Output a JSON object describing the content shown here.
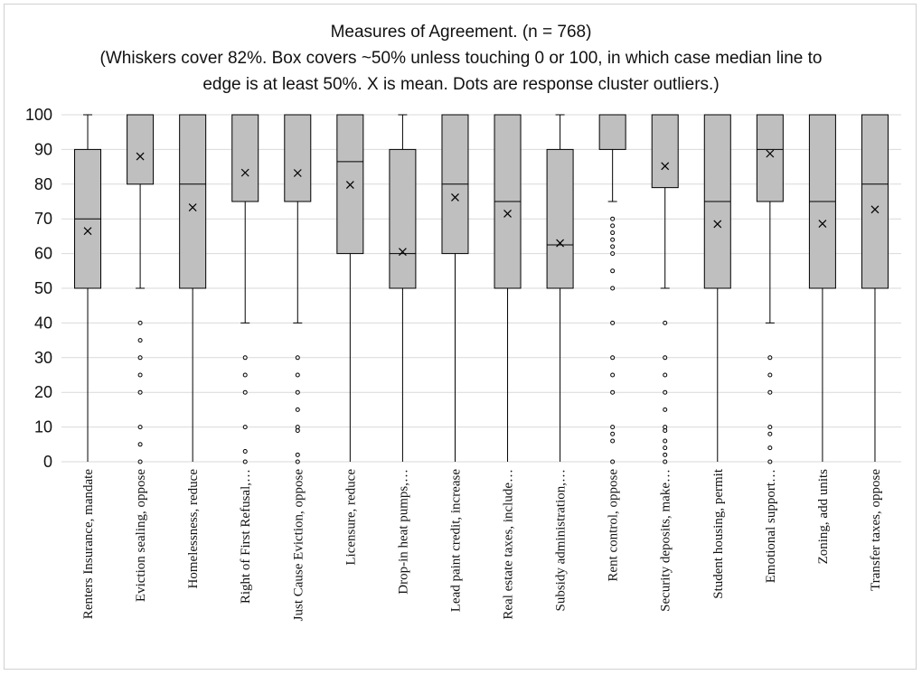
{
  "chart_data": {
    "type": "box",
    "title": "Measures of Agreement. (n = 768)",
    "subtitle_lines": [
      "(Whiskers cover 82%. Box covers ~50% unless touching 0 or 100, in which case median line to",
      "edge is at least 50%. X is mean. Dots are response cluster outliers.)"
    ],
    "ylim": [
      0,
      100
    ],
    "yticks": [
      0,
      10,
      20,
      30,
      40,
      50,
      60,
      70,
      80,
      90,
      100
    ],
    "grid": true,
    "series": [
      {
        "category": "Renters Insurance, mandate",
        "whisker_low": 0,
        "q1": 50,
        "median": 70,
        "q3": 90,
        "whisker_high": 100,
        "mean": 66.5,
        "outliers": []
      },
      {
        "category": "Eviction sealing, oppose",
        "whisker_low": 50,
        "q1": 80,
        "median": 100,
        "q3": 100,
        "whisker_high": 100,
        "mean": 88,
        "outliers": [
          0,
          5,
          10,
          20,
          25,
          30,
          35,
          40
        ]
      },
      {
        "category": "Homelessness, reduce",
        "whisker_low": 0,
        "q1": 50,
        "median": 80,
        "q3": 100,
        "whisker_high": 100,
        "mean": 73.3,
        "outliers": []
      },
      {
        "category": "Right of First Refusal,…",
        "whisker_low": 40,
        "q1": 75,
        "median": 100,
        "q3": 100,
        "whisker_high": 100,
        "mean": 83.3,
        "outliers": [
          0,
          3,
          10,
          20,
          25,
          30
        ]
      },
      {
        "category": "Just Cause Eviction, oppose",
        "whisker_low": 40,
        "q1": 75,
        "median": 100,
        "q3": 100,
        "whisker_high": 100,
        "mean": 83.2,
        "outliers": [
          0,
          2,
          9,
          10,
          15,
          20,
          25,
          30
        ]
      },
      {
        "category": "Licensure, reduce",
        "whisker_low": 0,
        "q1": 60,
        "median": 86.5,
        "q3": 100,
        "whisker_high": 100,
        "mean": 79.8,
        "outliers": []
      },
      {
        "category": "Drop-in heat pumps,…",
        "whisker_low": 0,
        "q1": 50,
        "median": 60,
        "q3": 90,
        "whisker_high": 100,
        "mean": 60.5,
        "outliers": []
      },
      {
        "category": "Lead paint credit, increase",
        "whisker_low": 0,
        "q1": 60,
        "median": 80,
        "q3": 100,
        "whisker_high": 100,
        "mean": 76.2,
        "outliers": []
      },
      {
        "category": "Real estate taxes, include…",
        "whisker_low": 0,
        "q1": 50,
        "median": 75,
        "q3": 100,
        "whisker_high": 100,
        "mean": 71.5,
        "outliers": []
      },
      {
        "category": "Subsidy administration,…",
        "whisker_low": 0,
        "q1": 50,
        "median": 62.5,
        "q3": 90,
        "whisker_high": 100,
        "mean": 63,
        "outliers": []
      },
      {
        "category": "Rent control, oppose",
        "whisker_low": 75,
        "q1": 90,
        "median": 100,
        "q3": 100,
        "whisker_high": 100,
        "mean": null,
        "outliers": [
          0,
          6,
          8,
          10,
          20,
          25,
          30,
          40,
          50,
          55,
          60,
          62,
          64,
          66,
          68,
          70
        ]
      },
      {
        "category": "Security deposits, make…",
        "whisker_low": 50,
        "q1": 79,
        "median": 100,
        "q3": 100,
        "whisker_high": 100,
        "mean": 85.2,
        "outliers": [
          0,
          2,
          4,
          6,
          9,
          10,
          15,
          20,
          25,
          30,
          40
        ]
      },
      {
        "category": "Student housing, permit",
        "whisker_low": 0,
        "q1": 50,
        "median": 75,
        "q3": 100,
        "whisker_high": 100,
        "mean": 68.5,
        "outliers": []
      },
      {
        "category": "Emotional support…",
        "whisker_low": 40,
        "q1": 75,
        "median": 90,
        "q3": 100,
        "whisker_high": 100,
        "mean": 88.8,
        "outliers": [
          0,
          4,
          8,
          10,
          20,
          25,
          30
        ]
      },
      {
        "category": "Zoning, add units",
        "whisker_low": 0,
        "q1": 50,
        "median": 75,
        "q3": 100,
        "whisker_high": 100,
        "mean": 68.6,
        "outliers": []
      },
      {
        "category": "Transfer taxes, oppose",
        "whisker_low": 0,
        "q1": 50,
        "median": 80,
        "q3": 100,
        "whisker_high": 100,
        "mean": 72.7,
        "outliers": []
      }
    ],
    "colors": {
      "box_fill": "#bfbfbf",
      "line": "#000000",
      "grid": "#d9d9d9"
    }
  }
}
